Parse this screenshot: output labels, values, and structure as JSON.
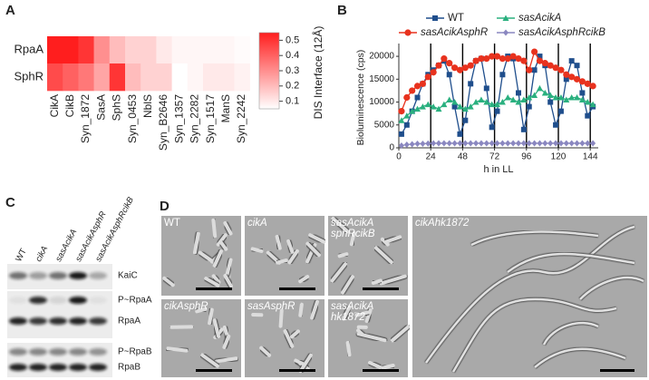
{
  "panel_labels": [
    "A",
    "B",
    "C",
    "D"
  ],
  "chart_data": [
    {
      "type": "heatmap",
      "rows": [
        "RpaA",
        "SphR"
      ],
      "columns": [
        "CikA",
        "CikB",
        "Syn_1872",
        "SasA",
        "SphS",
        "Syn_0453",
        "NblS",
        "Syn_B2646",
        "Syn_1357",
        "Syn_2282",
        "Syn_1517",
        "ManS",
        "Syn_2242"
      ],
      "z": [
        [
          0.55,
          0.55,
          0.5,
          0.3,
          0.2,
          0.15,
          0.15,
          0.1,
          0.07,
          0.07,
          0.07,
          0.07,
          0.06
        ],
        [
          0.45,
          0.4,
          0.35,
          0.25,
          0.5,
          0.2,
          0.15,
          0.15,
          0.05,
          0.07,
          0.1,
          0.1,
          0.08
        ]
      ],
      "zlim": [
        0.05,
        0.55
      ],
      "zticks": [
        0.1,
        0.2,
        0.3,
        0.4,
        0.5
      ],
      "colorbar_label": "DIS Interface (12Å)",
      "colors": [
        "#ffffff",
        "#ff1e1e"
      ]
    },
    {
      "type": "line",
      "xlabel": "h in LL",
      "ylabel": "Bioluminescence (cps)",
      "xlim": [
        0,
        150
      ],
      "xticks": [
        0,
        24,
        48,
        72,
        96,
        120,
        144
      ],
      "ylim": [
        0,
        22000
      ],
      "yticks": [
        0,
        5000,
        10000,
        15000,
        20000
      ],
      "day_lines": true,
      "x": [
        2,
        6,
        10,
        14,
        18,
        22,
        26,
        30,
        34,
        38,
        42,
        46,
        50,
        54,
        58,
        62,
        66,
        70,
        74,
        78,
        82,
        86,
        90,
        94,
        98,
        102,
        106,
        110,
        114,
        118,
        122,
        126,
        130,
        134,
        138,
        142,
        146
      ],
      "series": [
        {
          "name": "WT",
          "color": "#1f4e8c",
          "marker": "square",
          "values": [
            3000,
            5000,
            8000,
            11000,
            14000,
            16000,
            17000,
            18000,
            19000,
            16000,
            9000,
            3000,
            6000,
            14000,
            19000,
            19500,
            13000,
            4500,
            8000,
            16000,
            20000,
            19500,
            12000,
            4000,
            9000,
            17000,
            20000,
            18000,
            10000,
            5000,
            8000,
            15000,
            19000,
            18000,
            12000,
            7000,
            9000
          ]
        },
        {
          "name": "sasAcikA",
          "color": "#2ab07f",
          "marker": "triangle",
          "values": [
            6000,
            7000,
            8000,
            8500,
            9000,
            9500,
            9000,
            8500,
            9500,
            10500,
            10000,
            9000,
            8500,
            9000,
            10000,
            10500,
            10000,
            9500,
            9500,
            10000,
            11000,
            10500,
            10000,
            10500,
            11000,
            11500,
            13000,
            12000,
            11500,
            11000,
            11000,
            10500,
            11000,
            11000,
            10500,
            10000,
            9500
          ]
        },
        {
          "name": "sasAcikAsphR",
          "color": "#e8321e",
          "marker": "circle",
          "values": [
            8000,
            11000,
            12500,
            13500,
            14000,
            15500,
            16500,
            18000,
            19500,
            18500,
            17500,
            17000,
            17500,
            18000,
            19000,
            19500,
            19500,
            20000,
            20000,
            19500,
            19500,
            20000,
            19500,
            19000,
            17000,
            21000,
            19000,
            18500,
            18000,
            17500,
            17000,
            16000,
            15500,
            15000,
            14500,
            14000,
            13500
          ]
        },
        {
          "name": "sasAcikAsphRcikB",
          "color": "#8a87c0",
          "marker": "diamond",
          "values": [
            500,
            700,
            800,
            900,
            900,
            950,
            1000,
            1000,
            1000,
            1000,
            1000,
            1000,
            1000,
            1000,
            1000,
            1000,
            1000,
            1000,
            1000,
            1000,
            1000,
            1000,
            1000,
            1000,
            1000,
            1000,
            1000,
            1000,
            1000,
            1000,
            1000,
            1000,
            1000,
            1000,
            1000,
            1000,
            1000
          ]
        }
      ]
    }
  ],
  "blot": {
    "lanes": [
      "WT",
      "cikA",
      "sasAcikA",
      "sasAcikAsphR",
      "sasAcikAsphRcikB"
    ],
    "bands": [
      "KaiC",
      "P~RpaA",
      "RpaA",
      "P~RpaB",
      "RpaB"
    ]
  },
  "micrographs": [
    [
      "WT"
    ],
    [
      "cikA"
    ],
    [
      "sasAcikA",
      "sphRcikB"
    ],
    [
      "cikAsphR"
    ],
    [
      "sasAsphR"
    ],
    [
      "sasAcikA",
      "hk1872"
    ],
    [
      "cikAhk1872"
    ]
  ]
}
